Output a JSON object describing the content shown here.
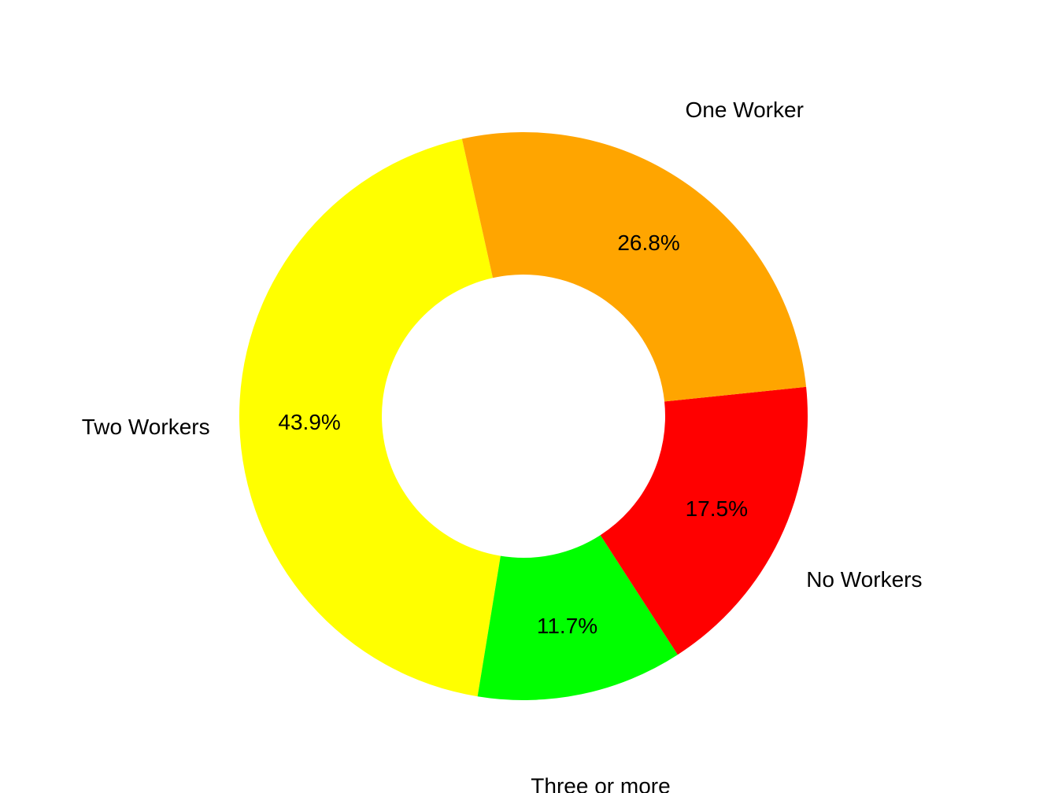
{
  "chart_data": {
    "type": "pie",
    "subtype": "donut",
    "title": "",
    "categories": [
      "Two Workers",
      "Three or more",
      "No Workers",
      "One Worker"
    ],
    "values": [
      43.9,
      11.7,
      17.5,
      26.8
    ],
    "value_labels": [
      "43.9%",
      "11.7%",
      "17.5%",
      "26.8%"
    ],
    "colors": [
      "#FFFF00",
      "#00FF00",
      "#FF0000",
      "#FFA500"
    ],
    "legend": "none",
    "grid": false
  }
}
